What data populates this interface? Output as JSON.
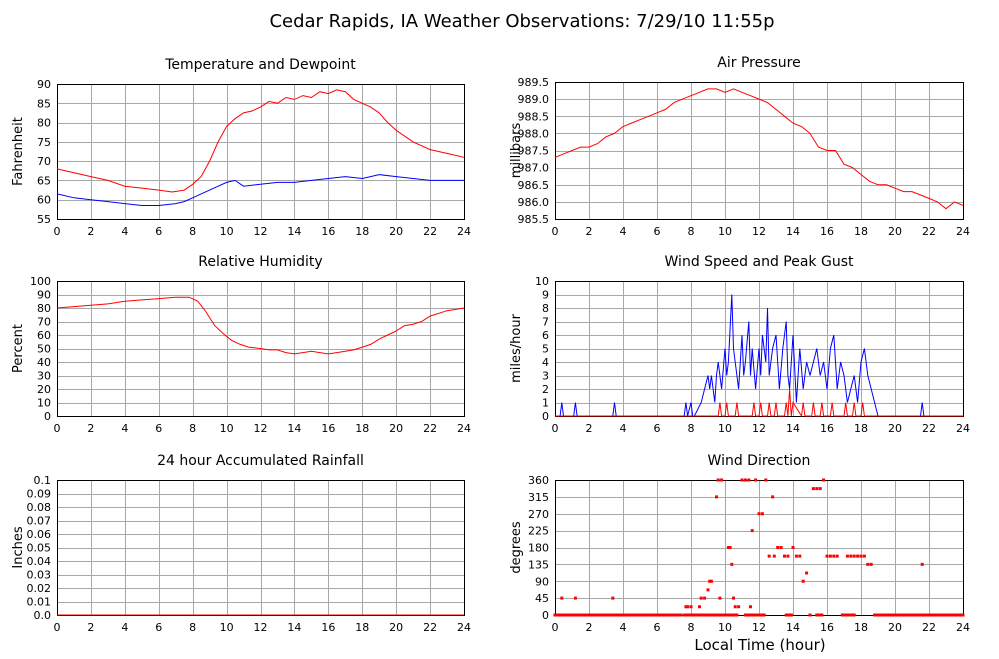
{
  "figure_title": "Cedar Rapids, IA Weather Observations: 7/29/10 11:55p",
  "x_axis_label": "Local Time (hour)",
  "colors": {
    "red": "#ff0000",
    "blue": "#0000ff",
    "grid": "#a8a8a8"
  },
  "x_ticks": [
    0,
    2,
    4,
    6,
    8,
    10,
    12,
    14,
    16,
    18,
    20,
    22,
    24
  ],
  "chart_data": [
    {
      "id": "temp",
      "type": "line",
      "title": "Temperature and Dewpoint",
      "ylabel": "Fahrenheit",
      "xlim": [
        0,
        24
      ],
      "ylim": [
        55,
        90
      ],
      "yticks": [
        "55",
        "60",
        "65",
        "70",
        "75",
        "80",
        "85",
        "90"
      ],
      "series": [
        {
          "color": "#ff0000",
          "x": [
            0,
            1,
            2,
            3,
            4,
            5,
            6,
            6.8,
            7.5,
            8,
            8.5,
            9,
            9.5,
            10,
            10.5,
            11,
            11.5,
            12,
            12.5,
            13,
            13.5,
            14,
            14.5,
            15,
            15.5,
            16,
            16.5,
            17,
            17.5,
            18,
            18.5,
            19,
            19.5,
            20,
            21,
            22,
            23,
            24
          ],
          "y": [
            68,
            67,
            66,
            65,
            63.5,
            63,
            62.5,
            62,
            62.5,
            64,
            66,
            70,
            75,
            79,
            81,
            82.5,
            83,
            84,
            85.5,
            85,
            86.5,
            86,
            87,
            86.5,
            88,
            87.5,
            88.5,
            88,
            86,
            85,
            84,
            82.5,
            80,
            78,
            75,
            73,
            72,
            71
          ]
        },
        {
          "color": "#0000ff",
          "x": [
            0,
            1,
            2,
            3,
            4,
            5,
            6,
            7,
            7.5,
            8,
            8.5,
            9,
            9.5,
            10,
            10.5,
            11,
            12,
            13,
            14,
            15,
            16,
            17,
            18,
            19,
            20,
            21,
            22,
            23,
            24
          ],
          "y": [
            61.5,
            60.5,
            60,
            59.5,
            59,
            58.5,
            58.5,
            59,
            59.5,
            60.5,
            61.5,
            62.5,
            63.5,
            64.5,
            65,
            63.5,
            64,
            64.5,
            64.5,
            65,
            65.5,
            66,
            65.5,
            66.5,
            66,
            65.5,
            65,
            65,
            65
          ]
        }
      ]
    },
    {
      "id": "pressure",
      "type": "line",
      "title": "Air Pressure",
      "ylabel": "millibars",
      "xlim": [
        0,
        24
      ],
      "ylim": [
        985.5,
        989.5
      ],
      "yticks": [
        "985.5",
        "986.0",
        "986.5",
        "987.0",
        "987.5",
        "988.0",
        "988.5",
        "989.0",
        "989.5"
      ],
      "series": [
        {
          "color": "#ff0000",
          "x": [
            0,
            0.5,
            1,
            1.5,
            2,
            2.5,
            3,
            3.5,
            4,
            4.5,
            5,
            5.5,
            6,
            6.5,
            7,
            7.5,
            8,
            8.5,
            9,
            9.5,
            10,
            10.5,
            11,
            11.5,
            12,
            12.5,
            13,
            13.5,
            14,
            14.5,
            15,
            15.5,
            16,
            16.5,
            17,
            17.5,
            18,
            18.5,
            19,
            19.5,
            20,
            20.5,
            21,
            21.5,
            22,
            22.5,
            23,
            23.5,
            24
          ],
          "y": [
            987.3,
            987.4,
            987.5,
            987.6,
            987.6,
            987.7,
            987.9,
            988.0,
            988.2,
            988.3,
            988.4,
            988.5,
            988.6,
            988.7,
            988.9,
            989.0,
            989.1,
            989.2,
            989.3,
            989.3,
            989.2,
            989.3,
            989.2,
            989.1,
            989.0,
            988.9,
            988.7,
            988.5,
            988.3,
            988.2,
            988.0,
            987.6,
            987.5,
            987.5,
            987.1,
            987.0,
            986.8,
            986.6,
            986.5,
            986.5,
            986.4,
            986.3,
            986.3,
            986.2,
            986.1,
            986.0,
            985.8,
            986.0,
            985.9
          ]
        }
      ]
    },
    {
      "id": "rh",
      "type": "line",
      "title": "Relative Humidity",
      "ylabel": "Percent",
      "xlim": [
        0,
        24
      ],
      "ylim": [
        0,
        100
      ],
      "yticks": [
        "0",
        "10",
        "20",
        "30",
        "40",
        "50",
        "60",
        "70",
        "80",
        "90",
        "100"
      ],
      "series": [
        {
          "color": "#ff0000",
          "x": [
            0,
            1,
            2,
            3,
            4,
            5,
            6,
            7,
            7.8,
            8.3,
            8.8,
            9.3,
            9.8,
            10.3,
            10.8,
            11.3,
            12,
            12.5,
            13,
            13.5,
            14,
            14.5,
            15,
            15.5,
            16,
            16.5,
            17,
            17.5,
            18,
            18.5,
            19,
            19.5,
            20,
            20.5,
            21,
            21.5,
            22,
            23,
            24
          ],
          "y": [
            80,
            81,
            82,
            83,
            85,
            86,
            87,
            88,
            88,
            85,
            77,
            67,
            61,
            56,
            53,
            51,
            50,
            49,
            49,
            47,
            46,
            47,
            48,
            47,
            46,
            47,
            48,
            49,
            51,
            53,
            57,
            60,
            63,
            67,
            68,
            70,
            74,
            78,
            80
          ]
        }
      ]
    },
    {
      "id": "wind",
      "type": "line",
      "title": "Wind Speed and Peak Gust",
      "ylabel": "miles/hour",
      "xlim": [
        0,
        24
      ],
      "ylim": [
        0,
        10
      ],
      "yticks": [
        "0",
        "1",
        "2",
        "3",
        "4",
        "5",
        "6",
        "7",
        "8",
        "9",
        "10"
      ],
      "series": [
        {
          "color": "#0000ff",
          "x": [
            0,
            0.3,
            0.4,
            0.5,
            1.1,
            1.2,
            1.3,
            3.4,
            3.5,
            3.6,
            7.6,
            7.7,
            7.8,
            8.0,
            8.1,
            8.2,
            8.6,
            8.8,
            9.0,
            9.1,
            9.2,
            9.4,
            9.5,
            9.6,
            9.8,
            10.0,
            10.1,
            10.2,
            10.4,
            10.5,
            10.6,
            10.8,
            11.0,
            11.1,
            11.2,
            11.4,
            11.5,
            11.6,
            11.8,
            12.0,
            12.1,
            12.2,
            12.4,
            12.5,
            12.6,
            12.8,
            13.0,
            13.1,
            13.2,
            13.4,
            13.6,
            13.7,
            13.8,
            14.0,
            14.2,
            14.3,
            14.4,
            14.6,
            14.8,
            15.0,
            15.2,
            15.4,
            15.6,
            15.8,
            16.0,
            16.2,
            16.4,
            16.6,
            16.8,
            17.0,
            17.2,
            17.4,
            17.6,
            17.8,
            18.0,
            18.2,
            18.4,
            18.6,
            18.8,
            19.0,
            21.5,
            21.6,
            21.7,
            24
          ],
          "y": [
            0,
            0,
            1,
            0,
            0,
            1,
            0,
            0,
            1,
            0,
            0,
            1,
            0,
            1,
            0,
            0,
            1,
            2,
            3,
            2,
            3,
            1,
            3,
            4,
            2,
            5,
            3,
            4,
            9,
            5,
            4,
            2,
            6,
            3,
            4,
            7,
            3,
            5,
            2,
            5,
            3,
            6,
            4,
            8,
            3,
            5,
            6,
            4,
            2,
            5,
            7,
            3,
            2,
            6,
            1,
            3,
            5,
            2,
            4,
            3,
            4,
            5,
            3,
            4,
            2,
            5,
            6,
            2,
            4,
            3,
            1,
            2,
            3,
            1,
            4,
            5,
            3,
            2,
            1,
            0,
            0,
            1,
            0,
            0
          ]
        },
        {
          "color": "#ff0000",
          "x": [
            0,
            9.6,
            9.7,
            9.8,
            10.0,
            10.1,
            10.2,
            10.6,
            10.7,
            10.8,
            11.6,
            11.7,
            11.8,
            12.0,
            12.1,
            12.2,
            12.5,
            12.6,
            12.7,
            12.9,
            13.0,
            13.1,
            13.5,
            13.6,
            13.7,
            13.8,
            13.9,
            14.0,
            14.5,
            14.6,
            14.7,
            15.1,
            15.2,
            15.3,
            15.6,
            15.7,
            15.8,
            16.2,
            16.3,
            16.4,
            17.0,
            17.1,
            17.2,
            17.5,
            17.6,
            17.7,
            18.0,
            18.1,
            18.2,
            24
          ],
          "y": [
            0,
            0,
            1,
            0,
            0,
            1,
            0,
            0,
            1,
            0,
            0,
            1,
            0,
            0,
            1,
            0,
            0,
            1,
            0,
            0,
            1,
            0,
            0,
            1,
            0,
            2,
            0,
            1,
            0,
            1,
            0,
            0,
            1,
            0,
            0,
            1,
            0,
            0,
            1,
            0,
            0,
            1,
            0,
            0,
            1,
            0,
            0,
            1,
            0,
            0
          ]
        }
      ]
    },
    {
      "id": "rain",
      "type": "line",
      "title": "24 hour Accumulated Rainfall",
      "ylabel": "Inches",
      "xlim": [
        0,
        24
      ],
      "ylim": [
        0,
        0.1
      ],
      "yticks": [
        "0.0",
        "0.01",
        "0.02",
        "0.03",
        "0.04",
        "0.05",
        "0.06",
        "0.07",
        "0.08",
        "0.09",
        "0.1"
      ],
      "series": [
        {
          "color": "#ff0000",
          "x": [
            0,
            24
          ],
          "y": [
            0,
            0
          ]
        }
      ]
    },
    {
      "id": "winddir",
      "type": "scatter",
      "title": "Wind Direction",
      "ylabel": "degrees",
      "xlabel": "Local Time (hour)",
      "xlim": [
        0,
        24
      ],
      "ylim": [
        0,
        360
      ],
      "yticks": [
        "0",
        "45",
        "90",
        "135",
        "180",
        "225",
        "270",
        "315",
        "360"
      ],
      "series": [
        {
          "color": "#ff0000",
          "x": [
            0.4,
            1.2,
            3.4,
            7.7,
            7.8,
            8.0,
            8.5,
            8.6,
            8.8,
            9.0,
            9.1,
            9.2,
            9.5,
            9.6,
            9.7,
            9.8,
            10.2,
            10.3,
            10.4,
            10.5,
            10.6,
            10.8,
            11.0,
            11.2,
            11.4,
            11.5,
            11.6,
            11.8,
            12.0,
            12.2,
            12.4,
            12.6,
            12.8,
            12.9,
            13.1,
            13.3,
            13.5,
            13.7,
            13.9,
            14.0,
            14.2,
            14.4,
            14.6,
            14.8,
            15.0,
            15.2,
            15.4,
            15.6,
            15.8,
            16.0,
            16.2,
            16.4,
            16.6,
            17.2,
            17.4,
            17.6,
            17.8,
            18.0,
            18.2,
            18.4,
            18.6,
            21.6
          ],
          "y": [
            45,
            45,
            45,
            22,
            22,
            22,
            22,
            45,
            45,
            67,
            90,
            90,
            315,
            360,
            45,
            360,
            180,
            180,
            135,
            45,
            22,
            22,
            360,
            360,
            360,
            22,
            225,
            360,
            270,
            270,
            360,
            157,
            315,
            157,
            180,
            180,
            157,
            157,
            0,
            180,
            157,
            157,
            90,
            112,
            0,
            337,
            337,
            337,
            360,
            157,
            157,
            157,
            157,
            157,
            157,
            157,
            157,
            157,
            157,
            135,
            135,
            135
          ]
        }
      ],
      "baseline_ranges": [
        [
          0,
          7.4
        ],
        [
          7.6,
          9.3
        ],
        [
          9.4,
          10.7
        ],
        [
          11.2,
          12.3
        ],
        [
          13.6,
          13.9
        ],
        [
          15.4,
          15.7
        ],
        [
          16.9,
          17.6
        ],
        [
          18.8,
          24
        ]
      ]
    }
  ]
}
